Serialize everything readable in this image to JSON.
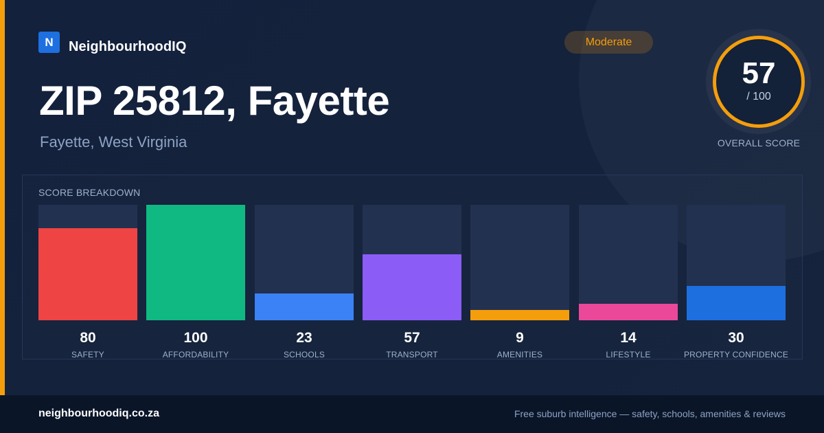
{
  "brand": {
    "logo_letter": "N",
    "name": "NeighbourhoodIQ"
  },
  "badge": {
    "label": "Moderate",
    "color": "#f59e0b"
  },
  "location": {
    "title": "ZIP 25812, Fayette",
    "subtitle": "Fayette, West Virginia"
  },
  "overall": {
    "score": "57",
    "max": "/ 100",
    "label": "OVERALL SCORE"
  },
  "breakdown": {
    "title": "SCORE BREAKDOWN",
    "max": 100,
    "items": [
      {
        "label": "SAFETY",
        "value": 80,
        "color": "#ef4444"
      },
      {
        "label": "AFFORDABILITY",
        "value": 100,
        "color": "#10b981"
      },
      {
        "label": "SCHOOLS",
        "value": 23,
        "color": "#3b82f6"
      },
      {
        "label": "TRANSPORT",
        "value": 57,
        "color": "#8b5cf6"
      },
      {
        "label": "AMENITIES",
        "value": 9,
        "color": "#f59e0b"
      },
      {
        "label": "LIFESTYLE",
        "value": 14,
        "color": "#ec4899"
      },
      {
        "label": "PROPERTY CONFIDENCE",
        "value": 30,
        "color": "#1d6fe0"
      }
    ]
  },
  "footer": {
    "url": "neighbourhoodiq.co.za",
    "tagline": "Free suburb intelligence — safety, schools, amenities & reviews"
  }
}
